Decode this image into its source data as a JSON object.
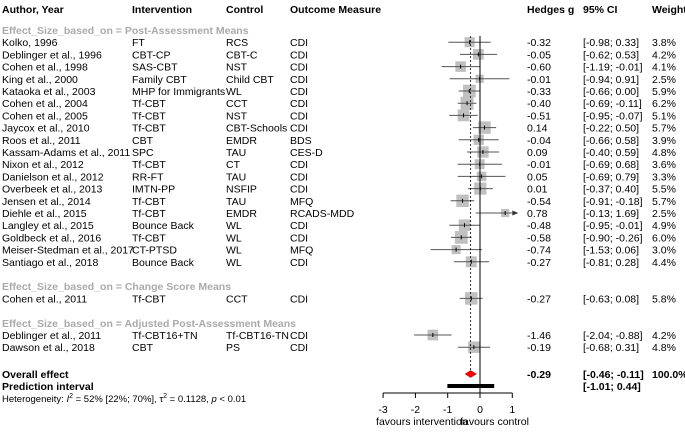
{
  "chart_data": {
    "type": "forest",
    "columns": {
      "author": "Author, Year",
      "intervention": "Intervention",
      "control": "Control",
      "outcome": "Outcome Measure",
      "effect": "Hedges g",
      "ci": "95% CI",
      "weight": "Weight"
    },
    "groups": [
      {
        "label": "Effect_Size_based_on = Post-Assessment Means",
        "studies": [
          {
            "author": "Kolko, 1996",
            "intervention": "FT",
            "control": "RCS",
            "outcome": "CDI",
            "g": -0.32,
            "lo": -0.98,
            "hi": 0.33,
            "ci": "[-0.98;  0.33]",
            "weight": "3.8%",
            "w": 3.8
          },
          {
            "author": "Deblinger et al., 1996",
            "intervention": "CBT-CP",
            "control": "CBT-C",
            "outcome": "CDI",
            "g": -0.05,
            "lo": -0.62,
            "hi": 0.53,
            "ci": "[-0.62;  0.53]",
            "weight": "4.2%",
            "w": 4.2
          },
          {
            "author": "Cohen et al.,  1998",
            "intervention": "SAS-CBT",
            "control": "NST",
            "outcome": "CDI",
            "g": -0.6,
            "lo": -1.19,
            "hi": -0.01,
            "ci": "[-1.19; -0.01]",
            "weight": "4.1%",
            "w": 4.1
          },
          {
            "author": "King et al., 2000",
            "intervention": "Family CBT",
            "control": "Child CBT",
            "outcome": "CDI",
            "g": -0.01,
            "lo": -0.94,
            "hi": 0.91,
            "ci": "[-0.94;  0.91]",
            "weight": "2.5%",
            "w": 2.5
          },
          {
            "author": "Kataoka et al., 2003",
            "intervention": "MHP for Immigrants",
            "control": "WL",
            "outcome": "CDI",
            "g": -0.33,
            "lo": -0.66,
            "hi": 0.0,
            "ci": "[-0.66;  0.00]",
            "weight": "5.9%",
            "w": 5.9
          },
          {
            "author": "Cohen et al., 2004",
            "intervention": "Tf-CBT",
            "control": "CCT",
            "outcome": "CDI",
            "g": -0.4,
            "lo": -0.69,
            "hi": -0.11,
            "ci": "[-0.69; -0.11]",
            "weight": "6.2%",
            "w": 6.2
          },
          {
            "author": "Cohen et al., 2005",
            "intervention": "Tf-CBT",
            "control": "NST",
            "outcome": "CDI",
            "g": -0.51,
            "lo": -0.95,
            "hi": -0.07,
            "ci": "[-0.95; -0.07]",
            "weight": "5.1%",
            "w": 5.1
          },
          {
            "author": "Jaycox et al., 2010",
            "intervention": "Tf-CBT",
            "control": "CBT-Schools",
            "outcome": "CDI",
            "g": 0.14,
            "lo": -0.22,
            "hi": 0.5,
            "ci": "[-0.22;  0.50]",
            "weight": "5.7%",
            "w": 5.7
          },
          {
            "author": "Roos et al., 2011",
            "intervention": "CBT",
            "control": "EMDR",
            "outcome": "BDS",
            "g": -0.04,
            "lo": -0.66,
            "hi": 0.58,
            "ci": "[-0.66;  0.58]",
            "weight": "3.9%",
            "w": 3.9
          },
          {
            "author": "Kassam-Adams et al., 2011",
            "intervention": "SPC",
            "control": "TAU",
            "outcome": "CES-D",
            "g": 0.09,
            "lo": -0.4,
            "hi": 0.59,
            "ci": "[-0.40;  0.59]",
            "weight": "4.8%",
            "w": 4.8
          },
          {
            "author": "Nixon et al., 2012",
            "intervention": "Tf-CBT",
            "control": "CT",
            "outcome": "CDI",
            "g": -0.01,
            "lo": -0.69,
            "hi": 0.68,
            "ci": "[-0.69;  0.68]",
            "weight": "3.6%",
            "w": 3.6
          },
          {
            "author": "Danielson et al., 2012",
            "intervention": "RR-FT",
            "control": "TAU",
            "outcome": "CDI",
            "g": 0.05,
            "lo": -0.69,
            "hi": 0.79,
            "ci": "[-0.69;  0.79]",
            "weight": "3.3%",
            "w": 3.3
          },
          {
            "author": "Overbeek et al., 2013",
            "intervention": "IMTN-PP",
            "control": "NSFIP",
            "outcome": "CDI",
            "g": 0.01,
            "lo": -0.37,
            "hi": 0.4,
            "ci": "[-0.37;  0.40]",
            "weight": "5.5%",
            "w": 5.5
          },
          {
            "author": "Jensen et al., 2014",
            "intervention": "Tf-CBT",
            "control": "TAU",
            "outcome": "MFQ",
            "g": -0.54,
            "lo": -0.91,
            "hi": -0.18,
            "ci": "[-0.91; -0.18]",
            "weight": "5.7%",
            "w": 5.7
          },
          {
            "author": "Diehle et al., 2015",
            "intervention": "Tf-CBT",
            "control": "EMDR",
            "outcome": "RCADS-MDD",
            "g": 0.78,
            "lo": -0.13,
            "hi": 1.69,
            "ci": "[-0.13;  1.69]",
            "weight": "2.5%",
            "w": 2.5
          },
          {
            "author": "Langley et al., 2015",
            "intervention": "Bounce Back",
            "control": "WL",
            "outcome": "CDI",
            "g": -0.48,
            "lo": -0.95,
            "hi": -0.01,
            "ci": "[-0.95; -0.01]",
            "weight": "4.9%",
            "w": 4.9
          },
          {
            "author": "Goldbeck et al., 2016",
            "intervention": "Tf-CBT",
            "control": "WL",
            "outcome": "CDI",
            "g": -0.58,
            "lo": -0.9,
            "hi": -0.26,
            "ci": "[-0.90; -0.26]",
            "weight": "6.0%",
            "w": 6.0
          },
          {
            "author": "Meiser-Stedman et al., 2017",
            "intervention": "CT-PTSD",
            "control": "WL",
            "outcome": "MFQ",
            "g": -0.74,
            "lo": -1.53,
            "hi": 0.06,
            "ci": "[-1.53;  0.06]",
            "weight": "3.0%",
            "w": 3.0
          },
          {
            "author": "Santiago et al., 2018",
            "intervention": "Bounce Back",
            "control": "WL",
            "outcome": "CDI",
            "g": -0.27,
            "lo": -0.81,
            "hi": 0.28,
            "ci": "[-0.81;  0.28]",
            "weight": "4.4%",
            "w": 4.4
          }
        ]
      },
      {
        "label": "Effect_Size_based_on = Change Score Means",
        "studies": [
          {
            "author": "Cohen et al., 2011",
            "intervention": "Tf-CBT",
            "control": "CCT",
            "outcome": "CDI",
            "g": -0.27,
            "lo": -0.63,
            "hi": 0.08,
            "ci": "[-0.63;  0.08]",
            "weight": "5.8%",
            "w": 5.8
          }
        ]
      },
      {
        "label": "Effect_Size_based_on = Adjusted Post-Assessment Means",
        "studies": [
          {
            "author": "Deblinger et al., 2011",
            "intervention": "Tf-CBT16+TN",
            "control": "Tf-CBT16-TN",
            "outcome": "CDI",
            "g": -1.46,
            "lo": -2.04,
            "hi": -0.88,
            "ci": "[-2.04; -0.88]",
            "weight": "4.2%",
            "w": 4.2
          },
          {
            "author": "Dawson et al., 2018",
            "intervention": "CBT",
            "control": "PS",
            "outcome": "CDI",
            "g": -0.19,
            "lo": -0.68,
            "hi": 0.31,
            "ci": "[-0.68;  0.31]",
            "weight": "4.8%",
            "w": 4.8
          }
        ]
      }
    ],
    "overall": {
      "label": "Overall effect",
      "g": -0.29,
      "g_text": "-0.29",
      "lo": -0.46,
      "hi": -0.11,
      "ci": "[-0.46; -0.11]",
      "weight": "100.0%"
    },
    "prediction": {
      "label": "Prediction interval",
      "lo": -1.01,
      "hi": 0.44,
      "ci": "[-1.01;  0.44]"
    },
    "heterogeneity": {
      "prefix": "Heterogeneity: ",
      "i2_symbol": "I",
      "i2_text": " = 52% [22%; 70%], ",
      "tau_symbol": "τ",
      "tau_text": " = 0.1128, ",
      "p_symbol": "p",
      "p_text": " < 0.01"
    },
    "xaxis": {
      "ticks": [
        -3,
        -2,
        -1,
        0,
        1
      ],
      "xlim": [
        -3,
        1
      ],
      "left_label": "favours intervention",
      "right_label": "favours control"
    },
    "colors": {
      "square": "#c0c0c0",
      "diamond": "#ff0000",
      "group_label": "#aaaaaa"
    }
  }
}
